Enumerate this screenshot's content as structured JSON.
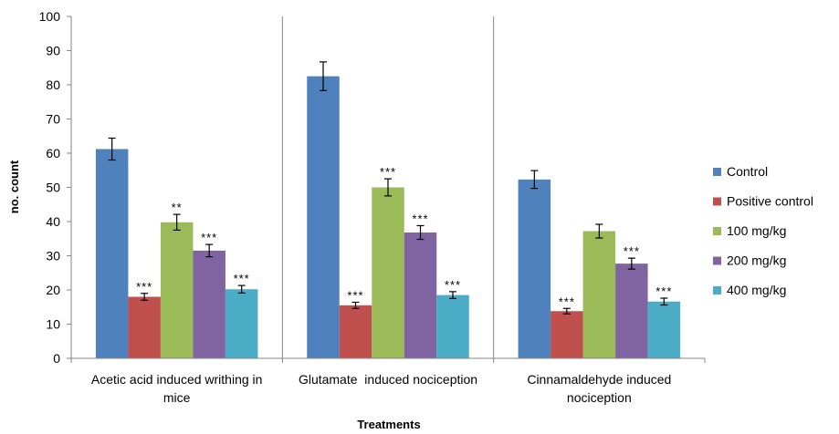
{
  "chart_data": {
    "type": "bar",
    "xlabel": "Treatments",
    "ylabel": "no. count",
    "ylim": [
      0,
      100
    ],
    "yticks": [
      "0",
      "10",
      "20",
      "30",
      "40",
      "50",
      "60",
      "70",
      "80",
      "90",
      "100"
    ],
    "categories": [
      [
        "Acetic acid induced writhing in",
        "mice"
      ],
      [
        "Glutamate  induced nociception"
      ],
      [
        "Cinnamaldehyde induced",
        "nociception"
      ]
    ],
    "legend_position": "right",
    "series": [
      {
        "name": "Control",
        "color": "#4f81bd",
        "values": [
          61.2,
          82.5,
          52.3
        ],
        "errors": [
          3.2,
          4.2,
          2.6
        ],
        "sig": [
          "",
          "",
          ""
        ]
      },
      {
        "name": "Positive control",
        "color": "#c0504d",
        "values": [
          18.0,
          15.5,
          13.8
        ],
        "errors": [
          1.0,
          0.9,
          0.8
        ],
        "sig": [
          "***",
          "***",
          "***"
        ]
      },
      {
        "name": "100 mg/kg",
        "color": "#9bbb59",
        "values": [
          39.8,
          50.0,
          37.2
        ],
        "errors": [
          2.3,
          2.5,
          2.0
        ],
        "sig": [
          "**",
          "***",
          ""
        ]
      },
      {
        "name": "200 mg/kg",
        "color": "#8064a2",
        "values": [
          31.5,
          36.8,
          27.7
        ],
        "errors": [
          1.8,
          2.0,
          1.6
        ],
        "sig": [
          "***",
          "***",
          "***"
        ]
      },
      {
        "name": "400 mg/kg",
        "color": "#4bacc6",
        "values": [
          20.2,
          18.5,
          16.6
        ],
        "errors": [
          1.1,
          1.0,
          1.0
        ],
        "sig": [
          "***",
          "***",
          "***"
        ]
      }
    ]
  }
}
